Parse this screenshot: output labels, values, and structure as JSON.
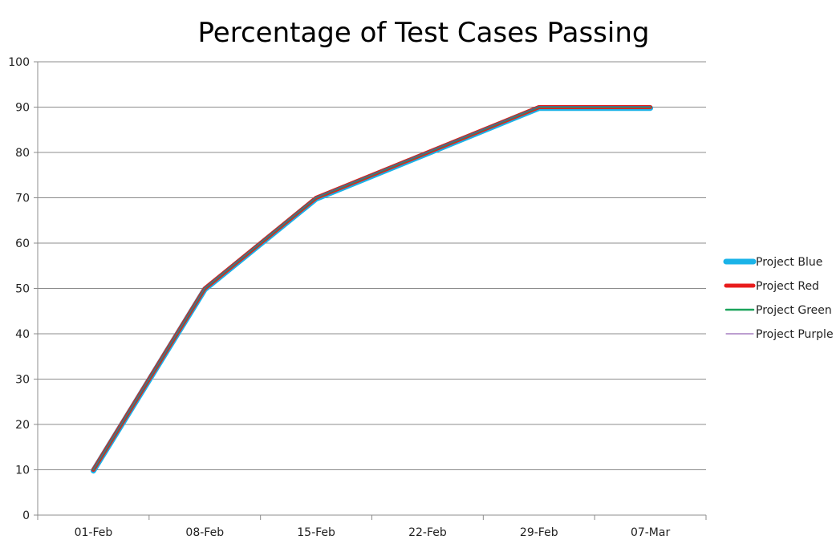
{
  "chart_data": {
    "type": "line",
    "title": "Percentage of Test Cases Passing",
    "xlabel": "",
    "ylabel": "",
    "categories": [
      "01-Feb",
      "08-Feb",
      "15-Feb",
      "22-Feb",
      "29-Feb",
      "07-Mar"
    ],
    "ylim": [
      0,
      100
    ],
    "yticks": [
      0,
      10,
      20,
      30,
      40,
      50,
      60,
      70,
      80,
      90,
      100
    ],
    "grid": true,
    "legend_position": "right",
    "series": [
      {
        "name": "Project Blue",
        "color": "#1ab3e8",
        "values": [
          10,
          50,
          70,
          80,
          90,
          90
        ]
      },
      {
        "name": "Project Red",
        "color": "#e81c1c",
        "values": [
          10,
          50,
          70,
          80,
          90,
          90
        ]
      },
      {
        "name": "Project Green",
        "color": "#1aa35a",
        "values": [
          10,
          50,
          70,
          80,
          90,
          90
        ]
      },
      {
        "name": "Project Purple",
        "color": "#7a3ea1",
        "values": [
          10,
          50,
          70,
          80,
          90,
          90
        ]
      }
    ]
  }
}
